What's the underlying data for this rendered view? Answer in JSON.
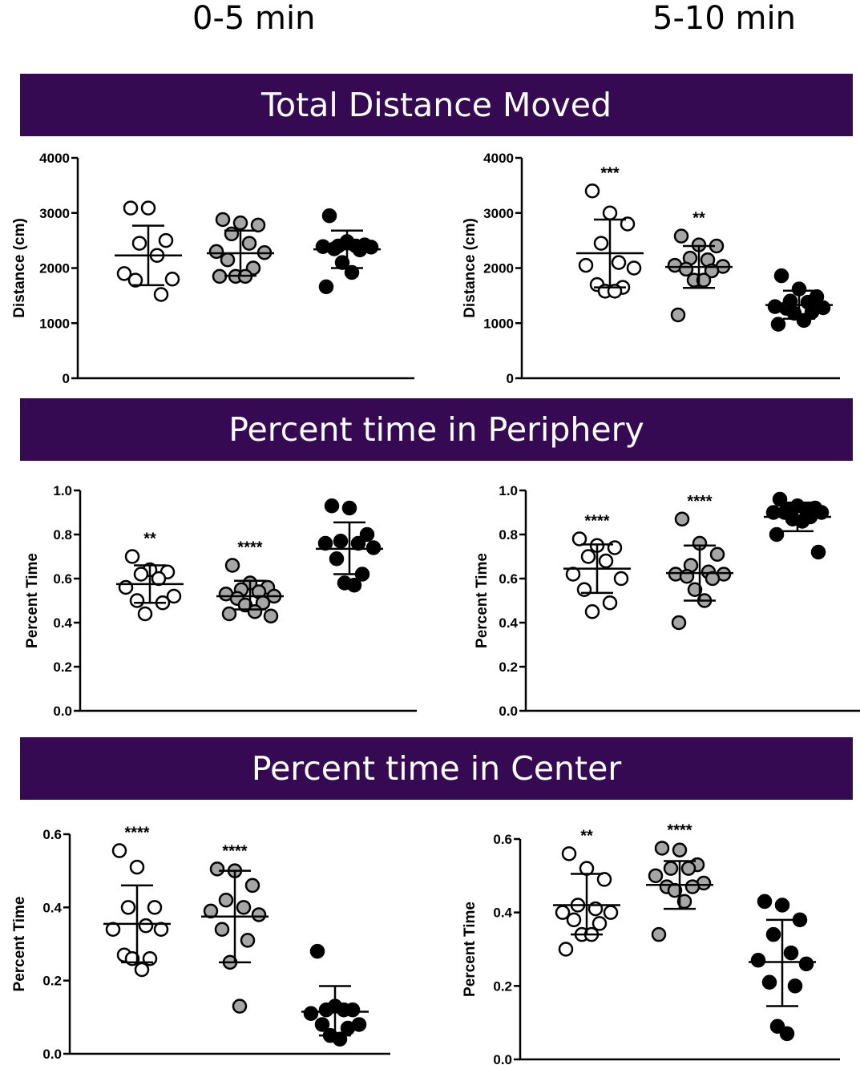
{
  "column_titles": {
    "left": "0-5 min",
    "right": "5-10 min"
  },
  "banners": [
    "Total Distance Moved",
    "Percent time in Periphery",
    "Percent time in Center"
  ],
  "colors": {
    "banner_bg": "#360a52",
    "banner_text": "#ffffff",
    "group1_fill": "#ffffff",
    "group2_fill": "#a6a6a6",
    "group3_fill": "#000000",
    "marker_edge": "#000000"
  },
  "chart_data": [
    {
      "type": "scatter",
      "title": "",
      "ylabel": "Distance (cm)",
      "ylim": [
        0,
        4000
      ],
      "yticks": [
        "0",
        "1000",
        "2000",
        "3000",
        "4000"
      ],
      "ytick_values": [
        0,
        1000,
        2000,
        3000,
        4000
      ],
      "series": [
        {
          "points": [
            3090,
            3090,
            2500,
            2450,
            2230,
            1900,
            1800,
            1780,
            1520
          ],
          "mean": 2230,
          "sd_low": 1690,
          "sd_high": 2770,
          "sig": ""
        },
        {
          "points": [
            2880,
            2820,
            2780,
            2620,
            2450,
            2300,
            2280,
            2150,
            2000,
            1850,
            1850,
            1850
          ],
          "mean": 2270,
          "sd_low": 1860,
          "sd_high": 2680,
          "sig": ""
        },
        {
          "points": [
            2950,
            2480,
            2420,
            2400,
            2400,
            2390,
            2380,
            2350,
            2330,
            2100,
            1920,
            1660
          ],
          "mean": 2340,
          "sd_low": 2000,
          "sd_high": 2680,
          "sig": ""
        }
      ]
    },
    {
      "type": "scatter",
      "title": "",
      "ylabel": "Distance (cm)",
      "ylim": [
        0,
        4000
      ],
      "yticks": [
        "0",
        "1000",
        "2000",
        "3000",
        "4000"
      ],
      "ytick_values": [
        0,
        1000,
        2000,
        3000,
        4000
      ],
      "series": [
        {
          "points": [
            3400,
            3000,
            2800,
            2450,
            2100,
            2050,
            2000,
            1700,
            1650,
            1580,
            1580
          ],
          "mean": 2270,
          "sd_low": 1650,
          "sd_high": 2880,
          "sig": "***"
        },
        {
          "points": [
            2580,
            2420,
            2400,
            2180,
            2150,
            2050,
            2030,
            1980,
            1950,
            1780,
            1780,
            1150
          ],
          "mean": 2020,
          "sd_low": 1640,
          "sd_high": 2400,
          "sig": "**"
        },
        {
          "points": [
            1860,
            1620,
            1480,
            1400,
            1380,
            1300,
            1280,
            1270,
            1200,
            1180,
            1050,
            980
          ],
          "mean": 1330,
          "sd_low": 1080,
          "sd_high": 1590,
          "sig": ""
        }
      ]
    },
    {
      "type": "scatter",
      "title": "",
      "ylabel": "Percent Time",
      "ylim": [
        0,
        1
      ],
      "yticks": [
        "0.0",
        "0.2",
        "0.4",
        "0.6",
        "0.8",
        "1.0"
      ],
      "ytick_values": [
        0,
        0.2,
        0.4,
        0.6,
        0.8,
        1.0
      ],
      "series": [
        {
          "points": [
            0.7,
            0.64,
            0.63,
            0.62,
            0.6,
            0.56,
            0.52,
            0.5,
            0.49,
            0.44
          ],
          "mean": 0.575,
          "sd_low": 0.49,
          "sd_high": 0.66,
          "sig": "**"
        },
        {
          "points": [
            0.66,
            0.58,
            0.56,
            0.55,
            0.54,
            0.53,
            0.52,
            0.51,
            0.49,
            0.48,
            0.45,
            0.44,
            0.43
          ],
          "mean": 0.52,
          "sd_low": 0.46,
          "sd_high": 0.59,
          "sig": "****"
        },
        {
          "points": [
            0.93,
            0.92,
            0.8,
            0.77,
            0.76,
            0.76,
            0.74,
            0.69,
            0.62,
            0.58,
            0.57
          ],
          "mean": 0.735,
          "sd_low": 0.62,
          "sd_high": 0.855,
          "sig": ""
        }
      ]
    },
    {
      "type": "scatter",
      "title": "",
      "ylabel": "Percent Time",
      "ylim": [
        0,
        1
      ],
      "yticks": [
        "0.0",
        "0.2",
        "0.4",
        "0.6",
        "0.8",
        "1.0"
      ],
      "ytick_values": [
        0,
        0.2,
        0.4,
        0.6,
        0.8,
        1.0
      ],
      "series": [
        {
          "points": [
            0.78,
            0.75,
            0.74,
            0.7,
            0.68,
            0.62,
            0.6,
            0.55,
            0.49,
            0.45
          ],
          "mean": 0.645,
          "sd_low": 0.535,
          "sd_high": 0.755,
          "sig": "****"
        },
        {
          "points": [
            0.87,
            0.76,
            0.71,
            0.66,
            0.63,
            0.62,
            0.62,
            0.61,
            0.6,
            0.55,
            0.5,
            0.4
          ],
          "mean": 0.625,
          "sd_low": 0.5,
          "sd_high": 0.75,
          "sig": "****"
        },
        {
          "points": [
            0.96,
            0.93,
            0.92,
            0.91,
            0.91,
            0.9,
            0.9,
            0.9,
            0.88,
            0.87,
            0.86,
            0.8,
            0.72
          ],
          "mean": 0.88,
          "sd_low": 0.815,
          "sd_high": 0.945,
          "sig": ""
        }
      ]
    },
    {
      "type": "scatter",
      "title": "",
      "ylabel": "Percent Time",
      "ylim": [
        0,
        0.6
      ],
      "yticks": [
        "0.0",
        "0.2",
        "0.4",
        "0.6"
      ],
      "ytick_values": [
        0,
        0.2,
        0.4,
        0.6
      ],
      "series": [
        {
          "points": [
            0.555,
            0.51,
            0.4,
            0.4,
            0.35,
            0.34,
            0.34,
            0.27,
            0.26,
            0.26,
            0.23
          ],
          "mean": 0.355,
          "sd_low": 0.25,
          "sd_high": 0.46,
          "sig": "****"
        },
        {
          "points": [
            0.505,
            0.5,
            0.46,
            0.42,
            0.4,
            0.39,
            0.38,
            0.34,
            0.31,
            0.25,
            0.13
          ],
          "mean": 0.375,
          "sd_low": 0.25,
          "sd_high": 0.5,
          "sig": "****"
        },
        {
          "points": [
            0.28,
            0.13,
            0.12,
            0.12,
            0.12,
            0.11,
            0.08,
            0.08,
            0.07,
            0.05,
            0.04
          ],
          "mean": 0.115,
          "sd_low": 0.05,
          "sd_high": 0.185,
          "sig": ""
        }
      ]
    },
    {
      "type": "scatter",
      "title": "",
      "ylabel": "Percent Time",
      "ylim": [
        0,
        0.6
      ],
      "yticks": [
        "0.0",
        "0.2",
        "0.4",
        "0.6"
      ],
      "ytick_values": [
        0,
        0.2,
        0.4,
        0.6
      ],
      "series": [
        {
          "points": [
            0.56,
            0.52,
            0.49,
            0.42,
            0.41,
            0.4,
            0.4,
            0.38,
            0.37,
            0.34,
            0.34,
            0.3
          ],
          "mean": 0.42,
          "sd_low": 0.34,
          "sd_high": 0.505,
          "sig": "**"
        },
        {
          "points": [
            0.575,
            0.57,
            0.53,
            0.52,
            0.52,
            0.5,
            0.48,
            0.47,
            0.47,
            0.46,
            0.43,
            0.34
          ],
          "mean": 0.475,
          "sd_low": 0.41,
          "sd_high": 0.54,
          "sig": "****"
        },
        {
          "points": [
            0.43,
            0.42,
            0.38,
            0.34,
            0.29,
            0.27,
            0.26,
            0.21,
            0.2,
            0.09,
            0.07
          ],
          "mean": 0.265,
          "sd_low": 0.145,
          "sd_high": 0.38,
          "sig": ""
        }
      ]
    }
  ]
}
